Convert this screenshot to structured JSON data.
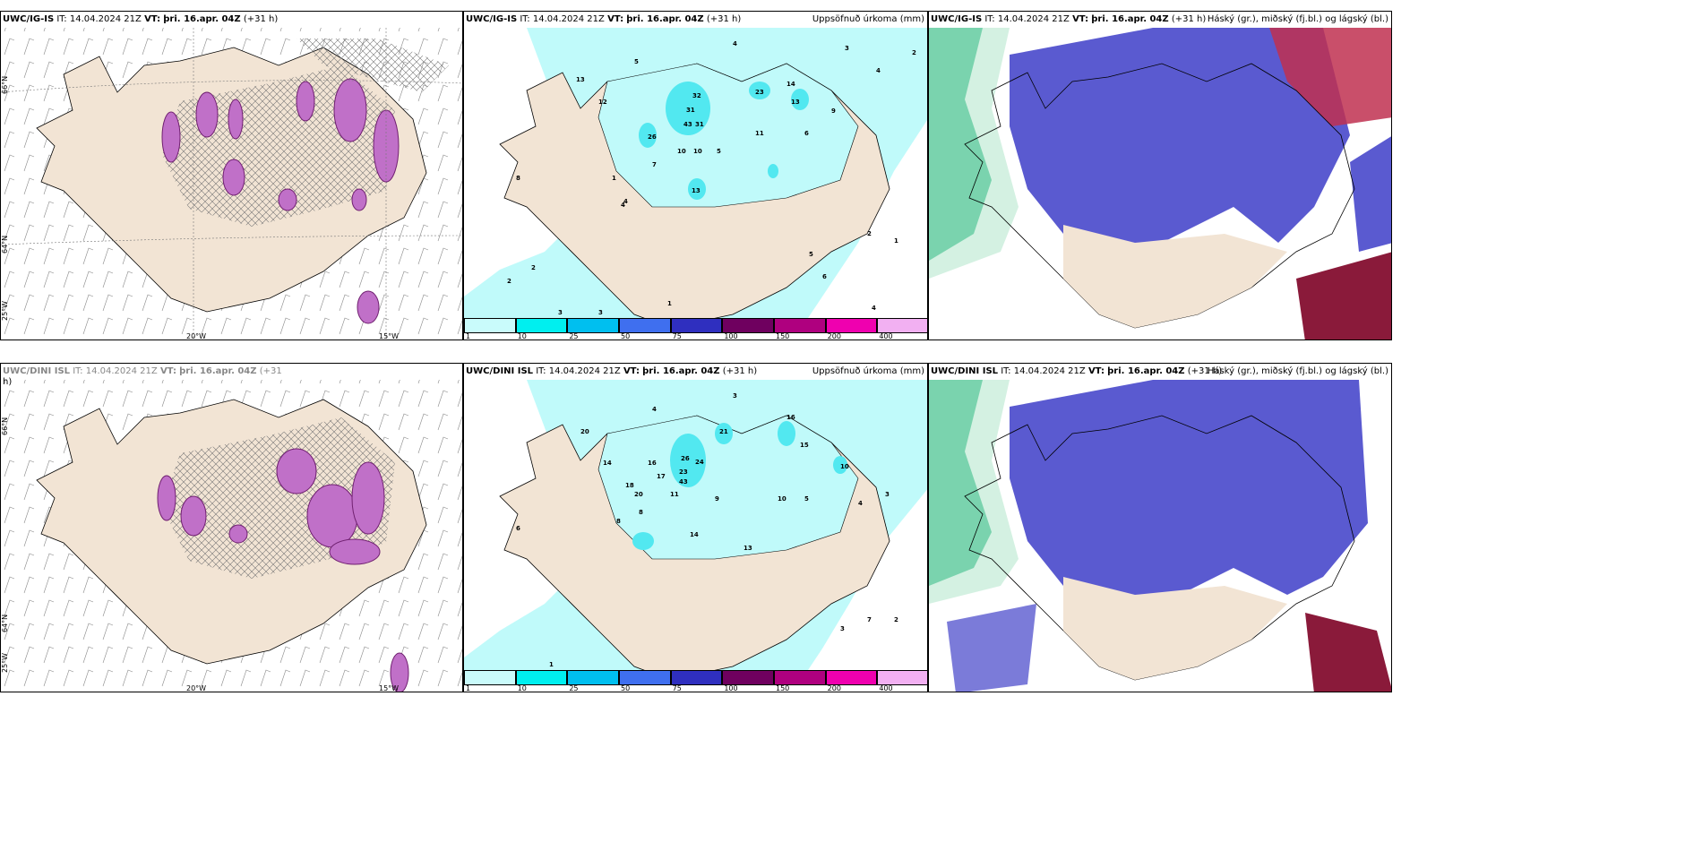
{
  "panels": {
    "top_left": {
      "model": "UWC/IG-IS",
      "it_label": "IT:",
      "it": "14.04.2024 21Z",
      "vt_label": "VT:",
      "vt": "þri. 16.apr. 04Z",
      "lead": "(+31 h)",
      "right": ""
    },
    "top_mid": {
      "model": "UWC/IG-IS",
      "it_label": "IT:",
      "it": "14.04.2024 21Z",
      "vt_label": "VT:",
      "vt": "þri. 16.apr. 04Z",
      "lead": "(+31 h)",
      "right": "Uppsöfnuð úrkoma (mm)"
    },
    "top_right": {
      "model": "UWC/IG-IS",
      "it_label": "IT:",
      "it": "14.04.2024 21Z",
      "vt_label": "VT:",
      "vt": "þri. 16.apr. 04Z",
      "lead": "(+31 h)",
      "right": "Háský (gr.), miðský (fj.bl.) og lágský (bl.)"
    },
    "bot_left": {
      "model": "UWC/DINI ISL",
      "it_label": "IT:",
      "it": "14.04.2024 21Z",
      "vt_label": "VT:",
      "vt": "þri. 16.apr. 04Z",
      "lead": "(+31",
      "lead2": "h)",
      "right": ""
    },
    "bot_mid": {
      "model": "UWC/DINI ISL",
      "it_label": "IT:",
      "it": "14.04.2024 21Z",
      "vt_label": "VT:",
      "vt": "þri. 16.apr. 04Z",
      "lead": "(+31 h)",
      "right": "Uppsöfnuð úrkoma (mm)"
    },
    "bot_right": {
      "model": "UWC/DINI ISL",
      "it_label": "IT:",
      "it": "14.04.2024 21Z",
      "vt_label": "VT:",
      "vt": "þri. 16.apr. 04Z",
      "lead": "(+31 h)",
      "right": "Háský (gr.), miðský (fj.bl.) og lágský (bl.)"
    }
  },
  "grid_labels": {
    "lat_66": "66°N",
    "lat_64": "64°N",
    "lon_25": "25°W",
    "lon_20": "20°W",
    "lon_15": "15°W"
  },
  "colorbar": {
    "ticks": [
      "1",
      "10",
      "25",
      "50",
      "75",
      "100",
      "150",
      "200",
      "400"
    ],
    "colors": [
      "#c9fbfb",
      "#00efef",
      "#00bfef",
      "#3f6fef",
      "#2f2fbf",
      "#6f005f",
      "#af007f",
      "#ef00af",
      "#f2b0f2"
    ]
  },
  "colors": {
    "land": "#f2e4d4",
    "precip_light": "#c0fafa",
    "precip_med": "#52e8f0",
    "cloud_mid": "#5a5ad0",
    "cloud_low": "#3f8fff",
    "cloud_high": "#a0203f",
    "high_green": "#3fbf8f",
    "snow": "#c040c0"
  },
  "precip_top": [
    "4",
    "5",
    "3",
    "2",
    "4",
    "13",
    "12",
    "32",
    "31",
    "23",
    "14",
    "13",
    "26",
    "43",
    "31",
    "10",
    "10",
    "5",
    "4",
    "13",
    "11",
    "6",
    "9",
    "2",
    "2",
    "4",
    "1",
    "5",
    "3",
    "2",
    "1",
    "8",
    "7",
    "1",
    "4",
    "6",
    "3"
  ],
  "precip_bot": [
    "3",
    "4",
    "20",
    "14",
    "16",
    "26",
    "24",
    "23",
    "43",
    "21",
    "16",
    "15",
    "17",
    "10",
    "18",
    "20",
    "11",
    "8",
    "9",
    "14",
    "13",
    "10",
    "5",
    "4",
    "3",
    "2",
    "1",
    "7",
    "8",
    "6",
    "3"
  ]
}
